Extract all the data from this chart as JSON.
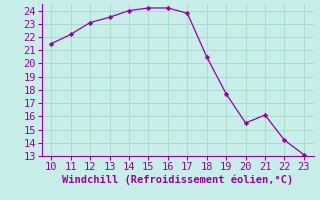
{
  "x": [
    10,
    11,
    12,
    13,
    14,
    15,
    16,
    17,
    18,
    19,
    20,
    21,
    22,
    23
  ],
  "y": [
    21.5,
    22.2,
    23.1,
    23.5,
    24.0,
    24.2,
    24.2,
    23.8,
    20.5,
    17.7,
    15.5,
    16.1,
    14.2,
    13.1
  ],
  "line_color": "#9900aa",
  "marker_color": "#9900aa",
  "background_color": "#c8eeea",
  "grid_color": "#aaddcc",
  "border_color": "#9900aa",
  "xlabel": "Windchill (Refroidissement éolien,°C)",
  "xlim": [
    9.5,
    23.5
  ],
  "ylim": [
    13,
    24.5
  ],
  "xticks": [
    10,
    11,
    12,
    13,
    14,
    15,
    16,
    17,
    18,
    19,
    20,
    21,
    22,
    23
  ],
  "yticks": [
    13,
    14,
    15,
    16,
    17,
    18,
    19,
    20,
    21,
    22,
    23,
    24
  ],
  "xlabel_color": "#9900aa",
  "tick_color": "#9900aa",
  "label_fontsize": 7.5,
  "tick_fontsize": 7.5
}
